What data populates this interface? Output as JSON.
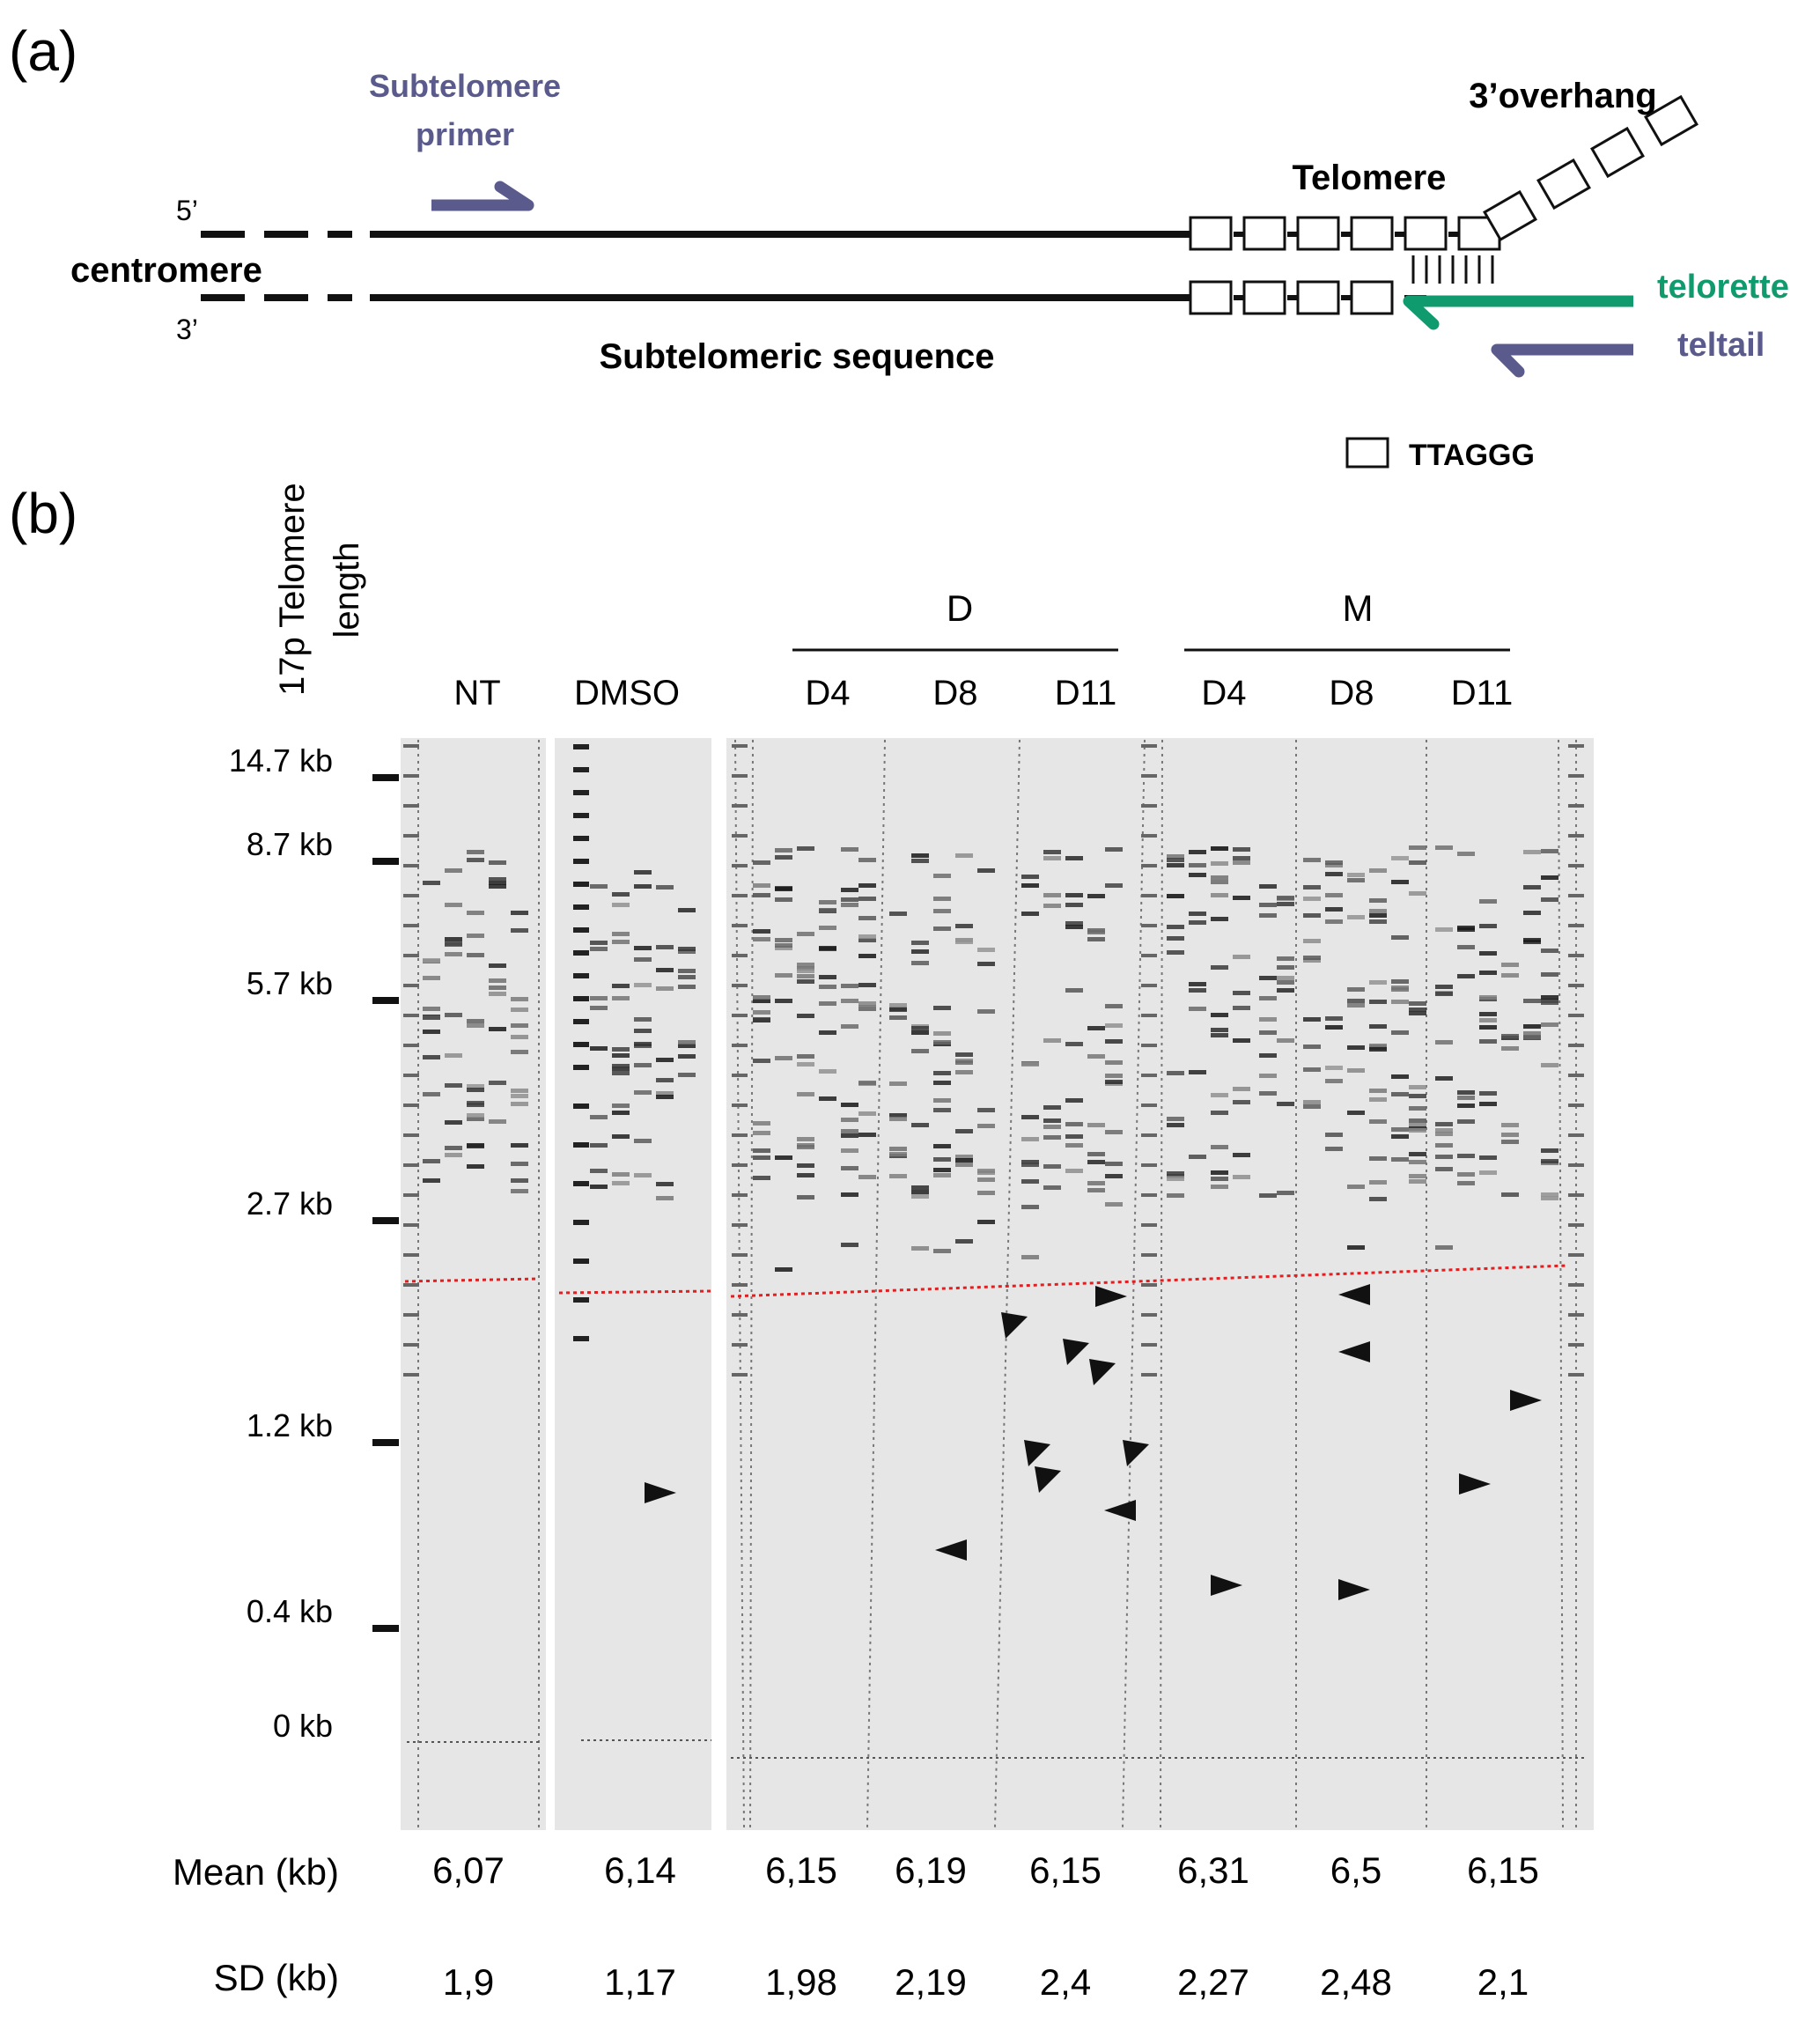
{
  "panel_a": {
    "label": "(a)",
    "subtelomere_primer_line1": "Subtelomere",
    "subtelomere_primer_line2": "primer",
    "overhang": "3’overhang",
    "telomere": "Telomere",
    "five_prime": "5’",
    "three_prime": "3’",
    "centromere": "centromere",
    "telorette": "telorette",
    "teltail": "teltail",
    "subtelomeric_sequence": "Subtelomeric sequence",
    "legend_repeat": "TTAGGG",
    "colors": {
      "primer": "#5a5a8c",
      "telorette": "#0f9b6e",
      "cutoff": "#e02020"
    }
  },
  "panel_b": {
    "label": "(b)",
    "yaxis_line1": "17p Telomere",
    "yaxis_line2": "length",
    "group_D": "D",
    "group_M": "M",
    "lanes": [
      "NT",
      "DMSO",
      "D4",
      "D8",
      "D11",
      "D4",
      "D8",
      "D11"
    ],
    "size_markers": [
      "14.7 kb",
      "8.7 kb",
      "5.7 kb",
      "2.7 kb",
      "1.2 kb",
      "0.4 kb",
      "0 kb"
    ],
    "mean_label": "Mean (kb)",
    "sd_label": "SD (kb)",
    "means": [
      "6,07",
      "6,14",
      "6,15",
      "6,19",
      "6,15",
      "6,31",
      "6,5",
      "6,15"
    ],
    "sds": [
      "1,9",
      "1,17",
      "1,98",
      "2,19",
      "2,4",
      "2,27",
      "2,48",
      "2,1"
    ]
  }
}
